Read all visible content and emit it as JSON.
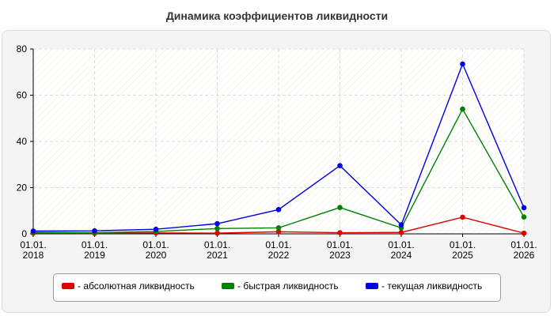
{
  "chart_data": {
    "type": "line",
    "title": "Динамика коэффициентов ликвидности",
    "categories": [
      "01.01.\n2018",
      "01.01.\n2019",
      "01.01.\n2020",
      "01.01.\n2021",
      "01.01.\n2022",
      "01.01.\n2023",
      "01.01.\n2024",
      "01.01.\n2025",
      "01.01.\n2026"
    ],
    "ylim": [
      0,
      80
    ],
    "yticks": [
      0,
      20,
      40,
      60,
      80
    ],
    "grid": true,
    "legend_position": "bottom",
    "series": [
      {
        "name": "- абсолютная ликвидность",
        "color": "#e00000",
        "values": [
          0.3,
          0.2,
          0.4,
          0.3,
          0.9,
          0.5,
          0.6,
          7.2,
          0.3
        ]
      },
      {
        "name": "- быстрая ликвидность",
        "color": "#008000",
        "values": [
          0.6,
          0.5,
          1.0,
          2.3,
          2.6,
          11.4,
          2.6,
          54.0,
          7.3
        ]
      },
      {
        "name": "- текущая ликвидность",
        "color": "#0000e0",
        "values": [
          1.2,
          1.3,
          2.0,
          4.4,
          10.5,
          29.5,
          3.9,
          73.5,
          11.3
        ]
      }
    ]
  }
}
